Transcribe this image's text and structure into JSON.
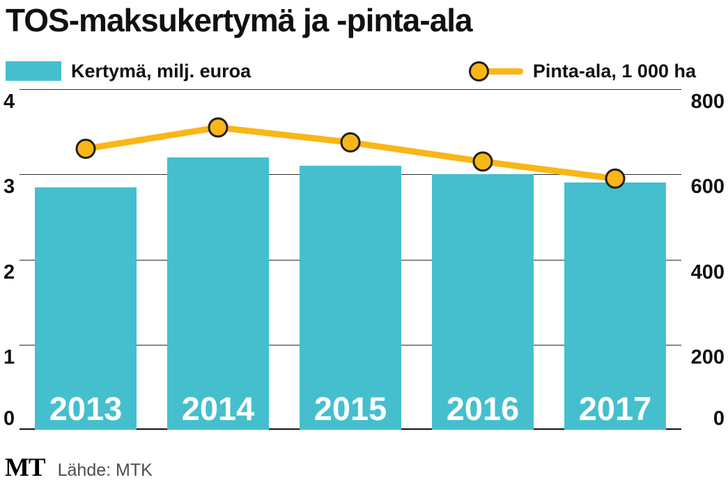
{
  "title": "TOS-maksukertymä ja -pinta-ala",
  "legend": {
    "bars": "Kertymä, milj. euroa",
    "line": "Pinta-ala, 1 000 ha"
  },
  "footer": {
    "logo": "MT",
    "source": "Lähde: MTK"
  },
  "colors": {
    "bar": "#45BFCE",
    "line": "#F9B616",
    "marker_stroke": "#1f1f1f",
    "grid": "#2b2b2b"
  },
  "chart_data": {
    "type": "combo",
    "title": "TOS-maksukertymä ja -pinta-ala",
    "categories": [
      "2013",
      "2014",
      "2015",
      "2016",
      "2017"
    ],
    "series": [
      {
        "name": "Kertymä, milj. euroa",
        "type": "bar",
        "axis": "left",
        "values": [
          2.85,
          3.2,
          3.1,
          3.0,
          2.9
        ]
      },
      {
        "name": "Pinta-ala, 1 000 ha",
        "type": "line",
        "axis": "right",
        "values": [
          660,
          710,
          675,
          630,
          590
        ]
      }
    ],
    "left_axis": {
      "label": "milj. euroa",
      "range": [
        0,
        4
      ],
      "ticks": [
        0,
        1,
        2,
        3,
        4
      ]
    },
    "right_axis": {
      "label": "1 000 ha",
      "range": [
        0,
        800
      ],
      "ticks": [
        0,
        200,
        400,
        600,
        800
      ]
    },
    "grid": true,
    "legend_position": "top",
    "source": "Lähde: MTK"
  }
}
